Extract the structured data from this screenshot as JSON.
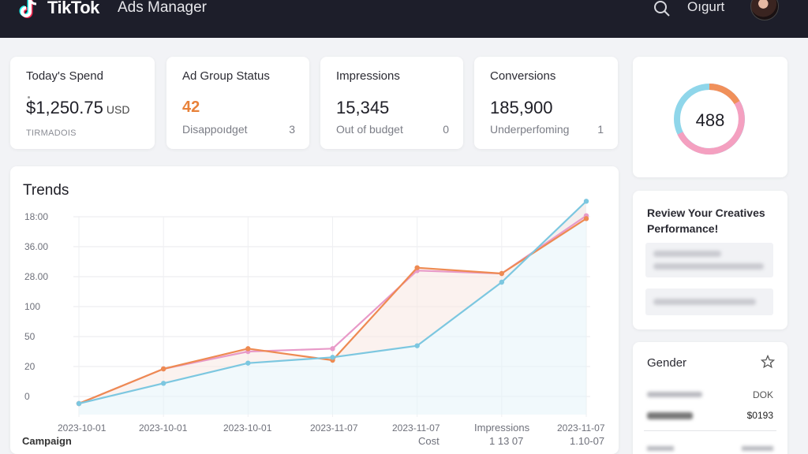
{
  "header": {
    "brand": "TikTok",
    "product": "Ads Manager",
    "user_name": "Oıgurt",
    "colors": {
      "background": "#1d1e2a",
      "accent_cyan": "#25f4ee",
      "accent_pink": "#fe2c55"
    }
  },
  "kpis": [
    {
      "title": "Today's Spend",
      "value": "$1,250.75",
      "unit": "USD",
      "sub": "TIRMADOIS",
      "count": ""
    },
    {
      "title": "Ad Group Status",
      "value": "42",
      "sub": "Disappoıdget",
      "count": "3"
    },
    {
      "title": "Impressions",
      "value": "15,345",
      "sub": "Out of budget",
      "count": "0"
    },
    {
      "title": "Conversions",
      "value": "185,900",
      "sub": "Underperfoming",
      "count": "1"
    }
  ],
  "donut": {
    "value": "488",
    "colors": [
      "#8fd6ea",
      "#f4a0c0",
      "#f0905a"
    ]
  },
  "review": {
    "title": "Review Your Creatives Performance!"
  },
  "gender": {
    "title": "Gender",
    "row1_value": "DOK",
    "row2_value": "$0193"
  },
  "trends": {
    "title": "Trends"
  },
  "footer": {
    "campaign_label": "Campaign",
    "cost_label": "Cost",
    "impressions_label": "Impressions",
    "impressions_date": "1 13 07",
    "last_date": "1.10-07"
  },
  "chart_data": {
    "type": "line",
    "title": "Trends",
    "y_tick_labels": [
      "0",
      "20",
      "50",
      "100",
      "28.00",
      "36.00",
      "18:00"
    ],
    "x_tick_labels": [
      "2023-10-01",
      "2023-10-01",
      "2023-10-01",
      "2023-11-07",
      "2023-11-07",
      "2023-11-07",
      "2023-11-07"
    ],
    "grid": true,
    "series": [
      {
        "color": "#7cc7e0",
        "values": [
          0.0,
          0.7,
          1.4,
          1.6,
          2.0,
          4.2,
          7.0
        ]
      },
      {
        "color": "#ee8a52",
        "values": [
          0.0,
          1.2,
          1.9,
          1.5,
          4.7,
          4.5,
          6.4
        ]
      },
      {
        "color": "#e89ac8",
        "values": [
          0.0,
          1.2,
          1.8,
          1.9,
          4.6,
          4.5,
          6.5
        ]
      }
    ],
    "x_positions": [
      0,
      1,
      2,
      3,
      4,
      5,
      6
    ],
    "ylim": [
      0,
      7.5
    ]
  }
}
